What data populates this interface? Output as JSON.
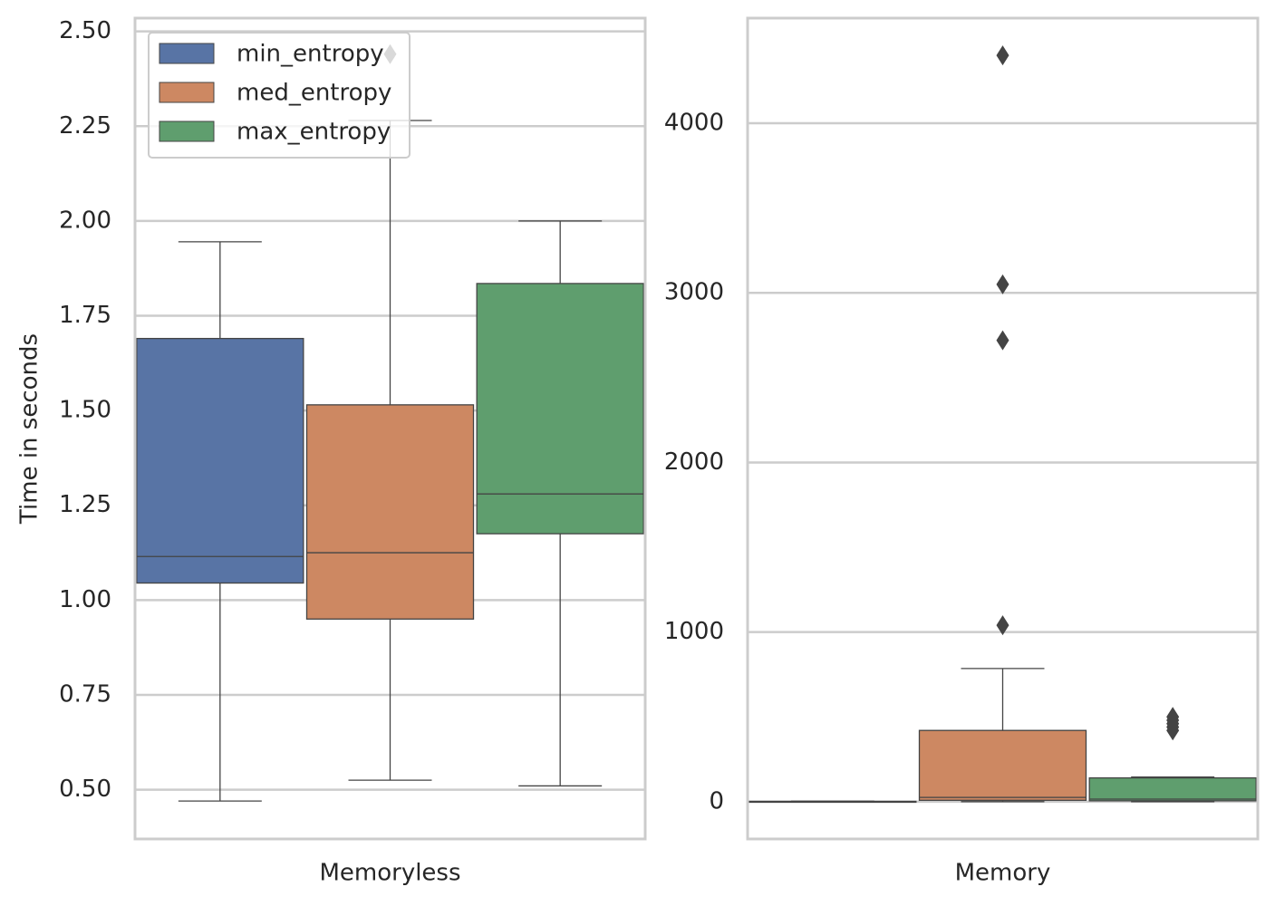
{
  "chart_data": [
    {
      "type": "box",
      "xlabel": "Memoryless",
      "ylabel": "Time in seconds",
      "ylim": [
        0.37,
        2.535
      ],
      "yticks": [
        0.5,
        0.75,
        1.0,
        1.25,
        1.5,
        1.75,
        2.0,
        2.25,
        2.5
      ],
      "ytick_labels": [
        "0.50",
        "0.75",
        "1.00",
        "1.25",
        "1.50",
        "1.75",
        "2.00",
        "2.25",
        "2.50"
      ],
      "grid": true,
      "legend": "top-left",
      "series": [
        {
          "name": "min_entropy",
          "color": "#5874a5",
          "whislo": 0.47,
          "q1": 1.045,
          "med": 1.115,
          "q3": 1.69,
          "whishi": 1.945,
          "fliers": []
        },
        {
          "name": "med_entropy",
          "color": "#cd8862",
          "whislo": 0.525,
          "q1": 0.95,
          "med": 1.125,
          "q3": 1.515,
          "whishi": 2.265,
          "fliers": [
            2.44
          ]
        },
        {
          "name": "max_entropy",
          "color": "#5f9e6e",
          "whislo": 0.51,
          "q1": 1.175,
          "med": 1.28,
          "q3": 1.835,
          "whishi": 2.0,
          "fliers": []
        }
      ]
    },
    {
      "type": "box",
      "xlabel": "Memory",
      "ylabel": "",
      "ylim": [
        -220,
        4620
      ],
      "yticks": [
        0,
        1000,
        2000,
        3000,
        4000
      ],
      "ytick_labels": [
        "0",
        "1000",
        "2000",
        "3000",
        "4000"
      ],
      "grid": true,
      "series": [
        {
          "name": "min_entropy",
          "color": "#5874a5",
          "whislo": 0,
          "q1": 0,
          "med": 1,
          "q3": 2,
          "whishi": 3,
          "fliers": []
        },
        {
          "name": "med_entropy",
          "color": "#cd8862",
          "whislo": 0,
          "q1": 8,
          "med": 25,
          "q3": 420,
          "whishi": 785,
          "fliers": [
            1040,
            2720,
            3050,
            4400
          ]
        },
        {
          "name": "max_entropy",
          "color": "#5f9e6e",
          "whislo": 0,
          "q1": 5,
          "med": 15,
          "q3": 140,
          "whishi": 145,
          "fliers": [
            420,
            440,
            460,
            480,
            500
          ]
        }
      ]
    }
  ]
}
